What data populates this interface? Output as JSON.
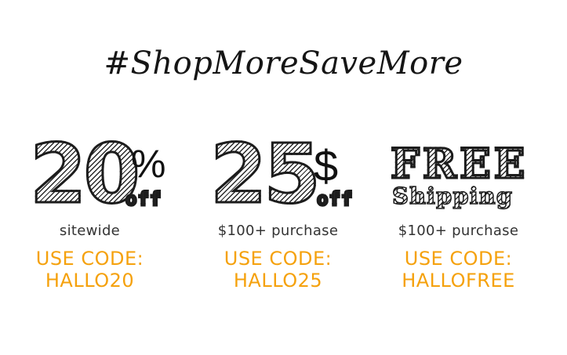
{
  "headline": "#ShopMoreSaveMore",
  "offers": [
    {
      "amount": "20",
      "unit": "%",
      "off_label": "off",
      "description": "sitewide",
      "code_label": "USE CODE:",
      "code": "HALLO20"
    },
    {
      "amount": "25",
      "unit": "$",
      "off_label": "off",
      "description": "$100+ purchase",
      "code_label": "USE CODE:",
      "code": "HALLO25"
    },
    {
      "title_line1": "FREE",
      "title_line2": "Shipping",
      "description": "$100+ purchase",
      "code_label": "USE CODE:",
      "code": "HALLOFREE"
    }
  ],
  "colors": {
    "code_color": "#f5a10c",
    "text_color": "#222222",
    "background": "#ffffff"
  }
}
